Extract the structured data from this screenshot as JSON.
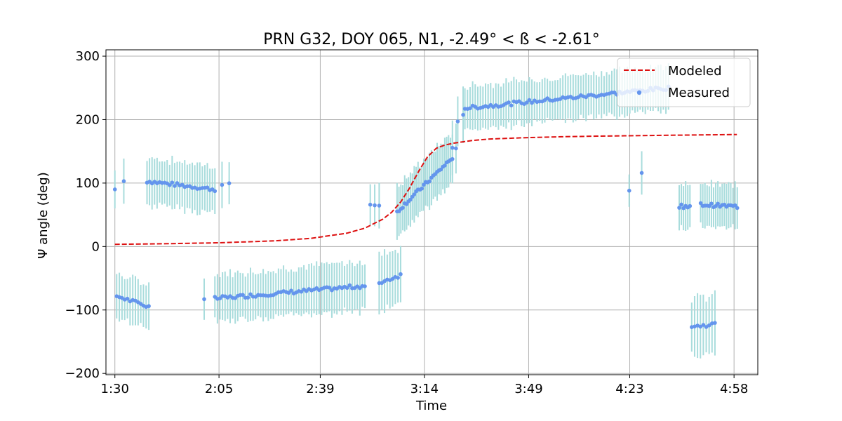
{
  "chart_data": {
    "type": "scatter",
    "title": "PRN G32, DOY 065, N1, -2.49° < ß < -2.61°",
    "xlabel": "Time",
    "ylabel": "Ψ angle (deg)",
    "xlim": [
      1.45,
      5.1
    ],
    "ylim": [
      -202,
      310
    ],
    "x_ticks": [
      1.5,
      2.083,
      2.65,
      3.233,
      3.817,
      4.383,
      4.967
    ],
    "x_tick_labels": [
      "1:30",
      "2:05",
      "2:39",
      "3:14",
      "3:49",
      "4:23",
      "4:58"
    ],
    "y_ticks": [
      -200,
      -100,
      0,
      100,
      200,
      300
    ],
    "y_tick_labels": [
      "−200",
      "−100",
      "0",
      "100",
      "200",
      "300"
    ],
    "grid": true,
    "legend_position": "top-right",
    "legend": [
      "Modeled",
      "Measured"
    ],
    "colors": {
      "modeled": "#dd1111",
      "measured": "#6495ed",
      "errorbar": "#a8dcdc",
      "grid": "#b0b0b0"
    },
    "modeled": {
      "name": "Modeled",
      "x": [
        1.5,
        1.8,
        2.1,
        2.4,
        2.6,
        2.8,
        2.9,
        3.0,
        3.05,
        3.1,
        3.15,
        3.2,
        3.25,
        3.3,
        3.35,
        3.4,
        3.5,
        3.6,
        3.8,
        4.0,
        4.2,
        4.5,
        4.8,
        4.983
      ],
      "y": [
        3.5,
        4.5,
        6,
        9,
        13,
        21,
        29,
        43,
        54,
        70,
        92,
        118,
        141,
        155,
        160,
        163,
        167,
        169.5,
        171.5,
        173,
        174,
        175,
        176,
        176.5
      ]
    },
    "measured": {
      "name": "Measured",
      "segments": [
        {
          "x0": 1.5,
          "x1": 1.5,
          "y0": 90,
          "y1": 90,
          "err": 30,
          "n": 1
        },
        {
          "x0": 1.55,
          "x1": 1.55,
          "y0": 103,
          "y1": 103,
          "err": 35,
          "n": 1
        },
        {
          "x0": 1.68,
          "x1": 2.06,
          "y0": 103,
          "y1": 90,
          "err": 37,
          "n": 28
        },
        {
          "x0": 2.1,
          "x1": 2.14,
          "y0": 96,
          "y1": 97,
          "err": 35,
          "n": 2
        },
        {
          "x0": 1.51,
          "x1": 1.69,
          "y0": -78,
          "y1": -95,
          "err": 35,
          "n": 13
        },
        {
          "x0": 2.0,
          "x1": 2.0,
          "y0": -83,
          "y1": -83,
          "err": 35,
          "n": 1
        },
        {
          "x0": 2.06,
          "x1": 2.9,
          "y0": -82,
          "y1": -62,
          "err": 38,
          "n": 60
        },
        {
          "x0": 2.93,
          "x1": 2.98,
          "y0": 65,
          "y1": 62,
          "err": 35,
          "n": 3
        },
        {
          "x0": 2.98,
          "x1": 3.1,
          "y0": -57,
          "y1": -45,
          "err": 45,
          "n": 9
        },
        {
          "x0": 3.08,
          "x1": 3.39,
          "y0": 55,
          "y1": 140,
          "err": 40,
          "n": 30
        },
        {
          "x0": 3.39,
          "x1": 3.41,
          "y0": 153,
          "y1": 152,
          "err": 40,
          "n": 2
        },
        {
          "x0": 3.42,
          "x1": 3.45,
          "y0": 195,
          "y1": 210,
          "err": 40,
          "n": 2
        },
        {
          "x0": 3.46,
          "x1": 4.6,
          "y0": 218,
          "y1": 250,
          "err": 35,
          "n": 80
        },
        {
          "x0": 4.38,
          "x1": 4.38,
          "y0": 88,
          "y1": 88,
          "err": 30,
          "n": 1
        },
        {
          "x0": 4.45,
          "x1": 4.45,
          "y0": 116,
          "y1": 116,
          "err": 40,
          "n": 1
        },
        {
          "x0": 4.66,
          "x1": 4.72,
          "y0": 63,
          "y1": 64,
          "err": 38,
          "n": 6
        },
        {
          "x0": 4.73,
          "x1": 4.86,
          "y0": -127,
          "y1": -122,
          "err": 45,
          "n": 9
        },
        {
          "x0": 4.78,
          "x1": 4.985,
          "y0": 66,
          "y1": 63,
          "err": 33,
          "n": 18
        }
      ]
    }
  }
}
